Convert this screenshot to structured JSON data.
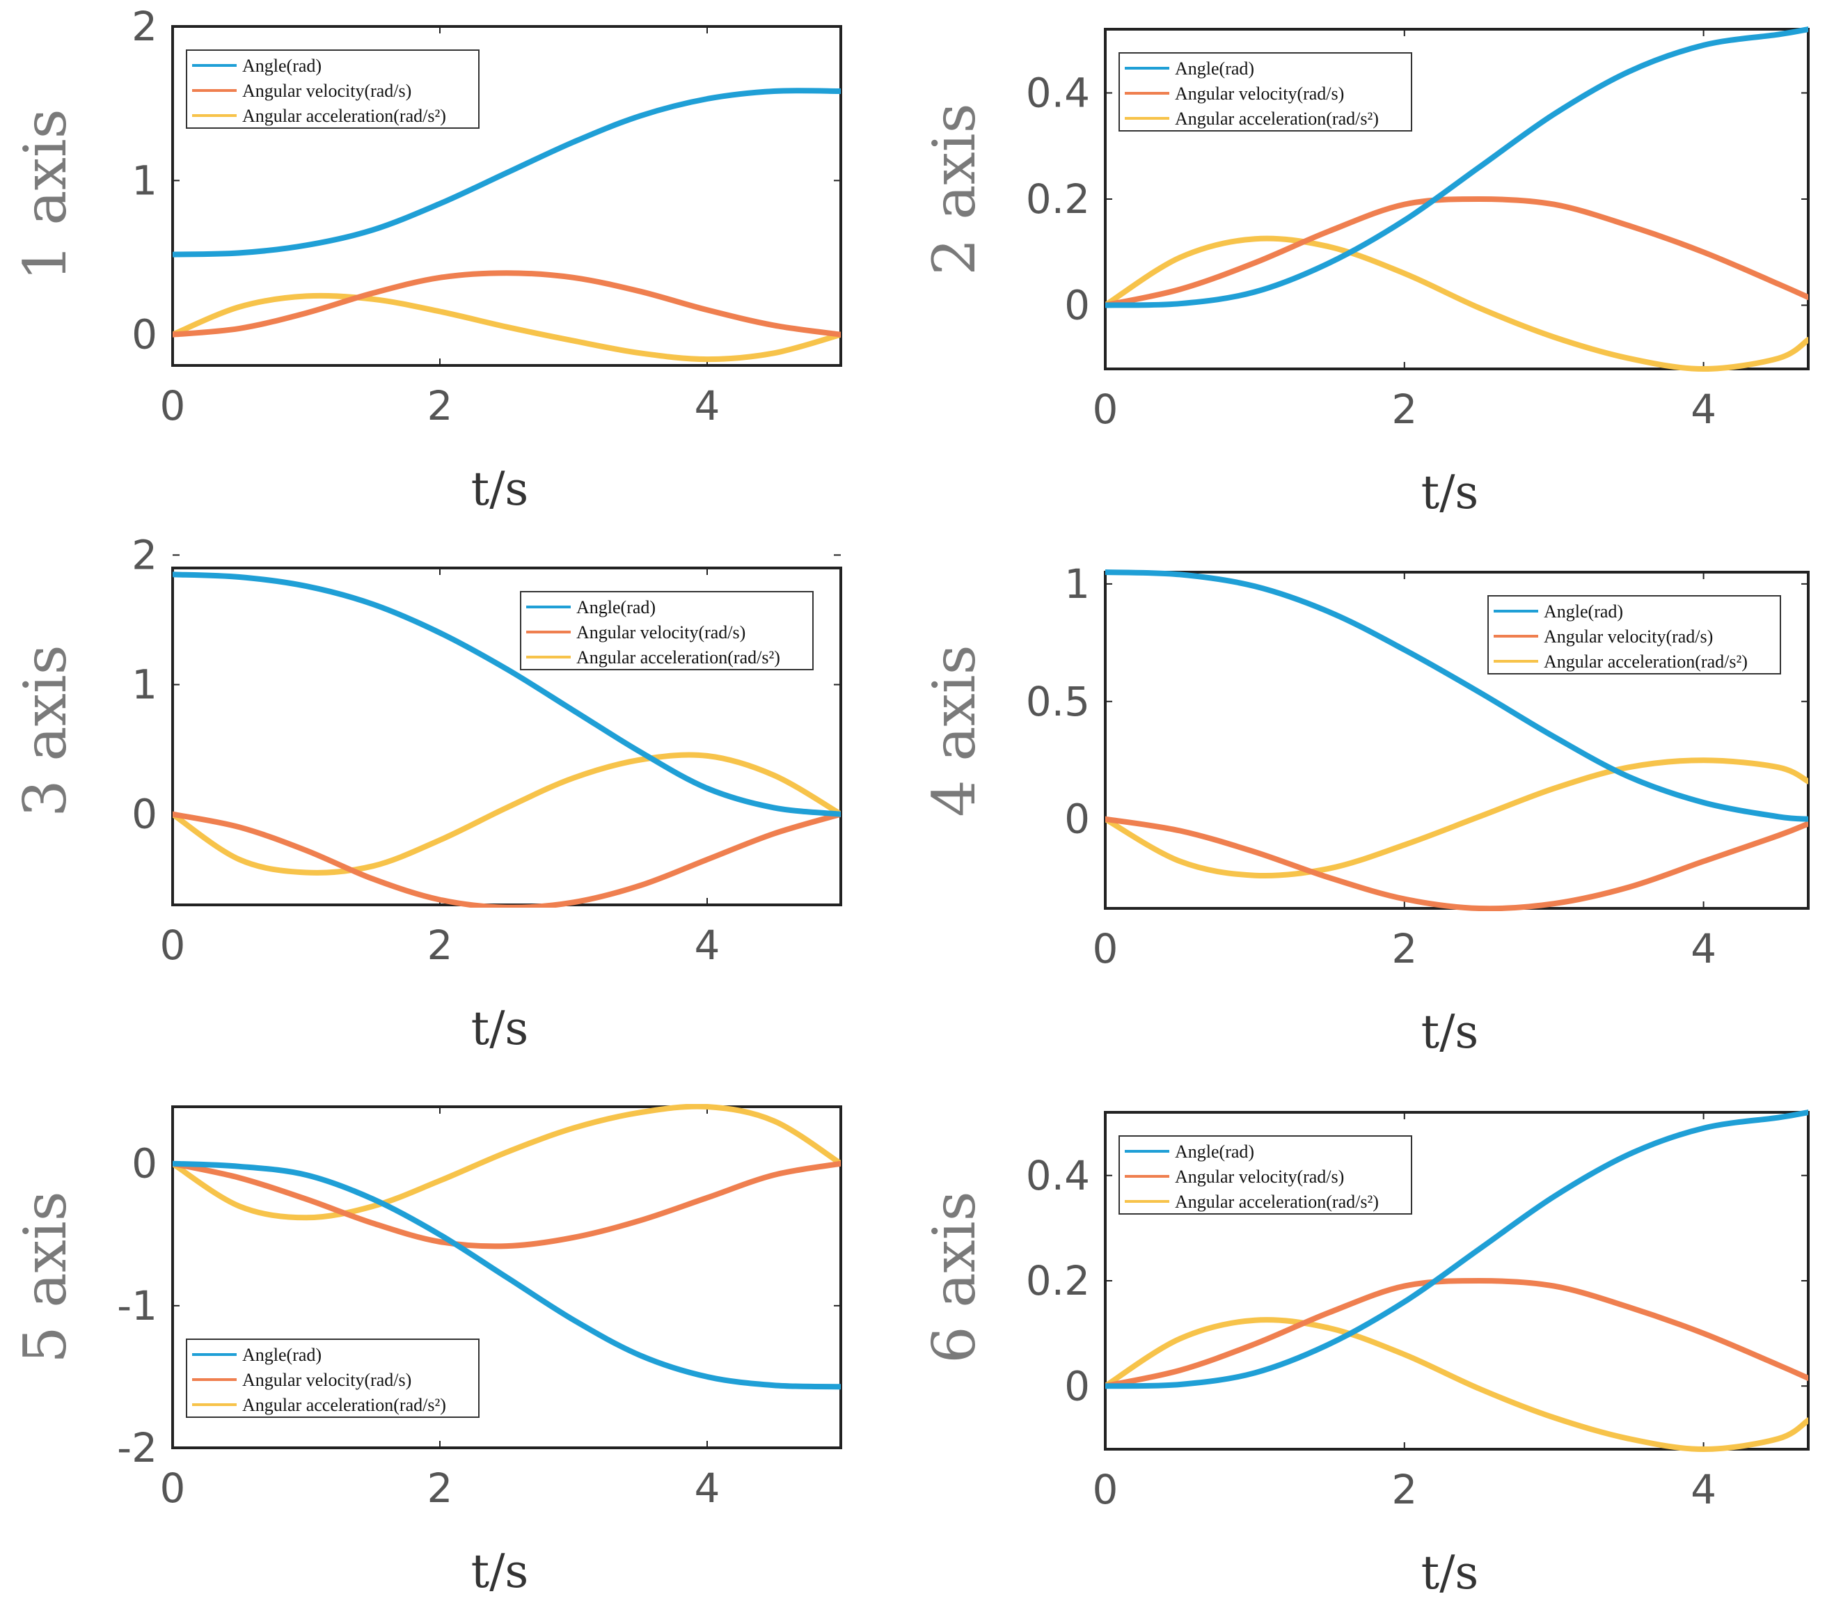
{
  "figure": {
    "legend": {
      "angle": "Angle(rad)",
      "velocity": "Angular velocity(rad/s)",
      "acceleration": "Angular acceleration(rad/s²)"
    },
    "colors": {
      "angle": "#1f9fd6",
      "velocity": "#ef7f4f",
      "acceleration": "#f7c34a"
    }
  },
  "chart_data": [
    {
      "type": "line",
      "ylabel": "1 axis",
      "xlabel": "t/s",
      "xlim": [
        0,
        5
      ],
      "ylim": [
        -0.2,
        2
      ],
      "xticks": [
        "0",
        "2",
        "4"
      ],
      "xtick_values": [
        0,
        2,
        4
      ],
      "yticks": [
        "0",
        "1",
        "2"
      ],
      "ytick_values": [
        0,
        1,
        2
      ],
      "legend_position": "top-left",
      "x": [
        0,
        0.5,
        1,
        1.5,
        2,
        2.5,
        3,
        3.5,
        4,
        4.5,
        5
      ],
      "series": [
        {
          "name": "Angle(rad)",
          "values": [
            0.52,
            0.53,
            0.58,
            0.68,
            0.85,
            1.05,
            1.25,
            1.42,
            1.53,
            1.58,
            1.58
          ]
        },
        {
          "name": "Angular velocity(rad/s)",
          "values": [
            0,
            0.04,
            0.14,
            0.27,
            0.37,
            0.4,
            0.37,
            0.28,
            0.16,
            0.06,
            0
          ]
        },
        {
          "name": "Angular acceleration(rad/s²)",
          "values": [
            0,
            0.18,
            0.25,
            0.23,
            0.15,
            0.05,
            -0.04,
            -0.12,
            -0.16,
            -0.12,
            0
          ]
        }
      ]
    },
    {
      "type": "line",
      "ylabel": "2 axis",
      "xlabel": "t/s",
      "xlim": [
        0,
        4.7
      ],
      "ylim": [
        -0.12,
        0.52
      ],
      "xticks": [
        "0",
        "2",
        "4"
      ],
      "xtick_values": [
        0,
        2,
        4
      ],
      "yticks": [
        "0",
        "0.2",
        "0.4"
      ],
      "ytick_values": [
        0,
        0.2,
        0.4
      ],
      "legend_position": "top-left",
      "x": [
        0,
        0.5,
        1,
        1.5,
        2,
        2.5,
        3,
        3.5,
        4,
        4.5,
        4.7
      ],
      "series": [
        {
          "name": "Angle(rad)",
          "values": [
            0,
            0.003,
            0.025,
            0.08,
            0.16,
            0.26,
            0.36,
            0.44,
            0.49,
            0.51,
            0.52
          ]
        },
        {
          "name": "Angular velocity(rad/s)",
          "values": [
            0,
            0.03,
            0.08,
            0.14,
            0.19,
            0.2,
            0.19,
            0.15,
            0.1,
            0.04,
            0.015
          ]
        },
        {
          "name": "Angular acceleration(rad/s²)",
          "values": [
            0,
            0.09,
            0.125,
            0.11,
            0.06,
            -0.005,
            -0.06,
            -0.1,
            -0.12,
            -0.1,
            -0.065
          ]
        }
      ]
    },
    {
      "type": "line",
      "ylabel": "3 axis",
      "xlabel": "t/s",
      "xlim": [
        0,
        5
      ],
      "ylim": [
        -0.7,
        1.9
      ],
      "xticks": [
        "0",
        "2",
        "4"
      ],
      "xtick_values": [
        0,
        2,
        4
      ],
      "yticks": [
        "0",
        "1",
        "2"
      ],
      "ytick_values": [
        0,
        1,
        2
      ],
      "legend_position": "top-right",
      "x": [
        0,
        0.5,
        1,
        1.5,
        2,
        2.5,
        3,
        3.5,
        4,
        4.5,
        5
      ],
      "series": [
        {
          "name": "Angle(rad)",
          "values": [
            1.85,
            1.83,
            1.76,
            1.62,
            1.4,
            1.12,
            0.8,
            0.48,
            0.2,
            0.05,
            0
          ]
        },
        {
          "name": "Angular velocity(rad/s)",
          "values": [
            0,
            -0.1,
            -0.28,
            -0.5,
            -0.66,
            -0.72,
            -0.68,
            -0.55,
            -0.35,
            -0.15,
            0
          ]
        },
        {
          "name": "Angular acceleration(rad/s²)",
          "values": [
            0,
            -0.35,
            -0.45,
            -0.4,
            -0.2,
            0.05,
            0.28,
            0.42,
            0.45,
            0.3,
            0
          ]
        }
      ]
    },
    {
      "type": "line",
      "ylabel": "4 axis",
      "xlabel": "t/s",
      "xlim": [
        0,
        4.7
      ],
      "ylim": [
        -0.38,
        1.05
      ],
      "xticks": [
        "0",
        "2",
        "4"
      ],
      "xtick_values": [
        0,
        2,
        4
      ],
      "yticks": [
        "0",
        "0.5",
        "1"
      ],
      "ytick_values": [
        0,
        0.5,
        1
      ],
      "legend_position": "top-right",
      "x": [
        0,
        0.5,
        1,
        1.5,
        2,
        2.5,
        3,
        3.5,
        4,
        4.5,
        4.7
      ],
      "series": [
        {
          "name": "Angle(rad)",
          "values": [
            1.05,
            1.04,
            0.99,
            0.88,
            0.72,
            0.54,
            0.35,
            0.18,
            0.07,
            0.01,
            0
          ]
        },
        {
          "name": "Angular velocity(rad/s)",
          "values": [
            0,
            -0.05,
            -0.14,
            -0.25,
            -0.34,
            -0.38,
            -0.36,
            -0.29,
            -0.18,
            -0.07,
            -0.02
          ]
        },
        {
          "name": "Angular acceleration(rad/s²)",
          "values": [
            0,
            -0.18,
            -0.24,
            -0.21,
            -0.11,
            0.01,
            0.13,
            0.22,
            0.25,
            0.22,
            0.16
          ]
        }
      ]
    },
    {
      "type": "line",
      "ylabel": "5 axis",
      "xlabel": "t/s",
      "xlim": [
        0,
        5
      ],
      "ylim": [
        -2.0,
        0.4
      ],
      "xticks": [
        "0",
        "2",
        "4"
      ],
      "xtick_values": [
        0,
        2,
        4
      ],
      "yticks": [
        "-2",
        "-1",
        "0"
      ],
      "ytick_values": [
        -2,
        -1,
        0
      ],
      "legend_position": "bottom-left",
      "x": [
        0,
        0.5,
        1,
        1.5,
        2,
        2.5,
        3,
        3.5,
        4,
        4.5,
        5
      ],
      "series": [
        {
          "name": "Angle(rad)",
          "values": [
            0,
            -0.02,
            -0.08,
            -0.25,
            -0.5,
            -0.8,
            -1.1,
            -1.35,
            -1.5,
            -1.56,
            -1.57
          ]
        },
        {
          "name": "Angular velocity(rad/s)",
          "values": [
            0,
            -0.1,
            -0.25,
            -0.42,
            -0.55,
            -0.58,
            -0.52,
            -0.4,
            -0.24,
            -0.08,
            0
          ]
        },
        {
          "name": "Angular acceleration(rad/s²)",
          "values": [
            0,
            -0.3,
            -0.38,
            -0.3,
            -0.12,
            0.08,
            0.25,
            0.36,
            0.4,
            0.3,
            0
          ]
        }
      ]
    },
    {
      "type": "line",
      "ylabel": "6 axis",
      "xlabel": "t/s",
      "xlim": [
        0,
        4.7
      ],
      "ylim": [
        -0.12,
        0.52
      ],
      "xticks": [
        "0",
        "2",
        "4"
      ],
      "xtick_values": [
        0,
        2,
        4
      ],
      "yticks": [
        "0",
        "0.2",
        "0.4"
      ],
      "ytick_values": [
        0,
        0.2,
        0.4
      ],
      "legend_position": "top-left",
      "x": [
        0,
        0.5,
        1,
        1.5,
        2,
        2.5,
        3,
        3.5,
        4,
        4.5,
        4.7
      ],
      "series": [
        {
          "name": "Angle(rad)",
          "values": [
            0,
            0.003,
            0.025,
            0.08,
            0.16,
            0.26,
            0.36,
            0.44,
            0.49,
            0.51,
            0.52
          ]
        },
        {
          "name": "Angular velocity(rad/s)",
          "values": [
            0,
            0.03,
            0.08,
            0.14,
            0.19,
            0.2,
            0.19,
            0.15,
            0.1,
            0.04,
            0.015
          ]
        },
        {
          "name": "Angular acceleration(rad/s²)",
          "values": [
            0,
            0.09,
            0.125,
            0.11,
            0.06,
            -0.005,
            -0.06,
            -0.1,
            -0.12,
            -0.1,
            -0.065
          ]
        }
      ]
    }
  ]
}
